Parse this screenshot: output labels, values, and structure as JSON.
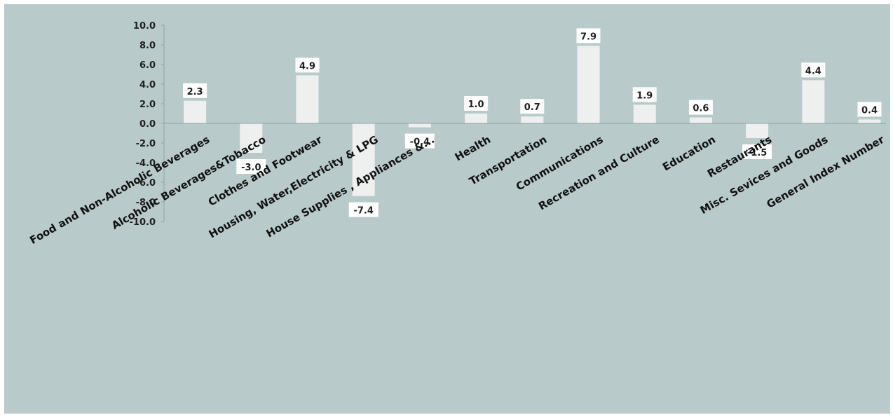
{
  "chart_data": {
    "type": "bar",
    "categories": [
      "Food and Non-Alcoholic Beverages",
      "Alcoholic Beverages&Tobacco",
      "Clothes and Footwear",
      "Housing, Water,Electricity & LPG",
      "House Supplies , Appliances &...",
      "Health",
      "Transportation",
      "Communications",
      "Recreation and Culture",
      "Education",
      "Restaurants",
      "Misc. Sevices and Goods",
      "General Index Number"
    ],
    "values": [
      2.3,
      -3.0,
      4.9,
      -7.4,
      -0.4,
      1.0,
      0.7,
      7.9,
      1.9,
      0.6,
      -1.5,
      4.4,
      0.4
    ],
    "value_labels": [
      "2.3",
      "-3.0",
      "4.9",
      "-7.4",
      "-0.4",
      "1.0",
      "0.7",
      "7.9",
      "1.9",
      "0.6",
      "-1.5",
      "4.4",
      "0.4"
    ],
    "y_ticks": [
      "10.0",
      "8.0",
      "6.0",
      "4.0",
      "2.0",
      "0.0",
      "-2.0",
      "-4.0",
      "-6.0",
      "-8.0",
      "-10.0"
    ],
    "ylim": [
      -10,
      10
    ],
    "title": "",
    "xlabel": "",
    "ylabel": "",
    "grid": false,
    "legend": "none",
    "colors": {
      "background": "#b9caca",
      "bar": "#eef0ef",
      "axis": "#8fa3a3",
      "label_box": "#ffffff"
    }
  }
}
